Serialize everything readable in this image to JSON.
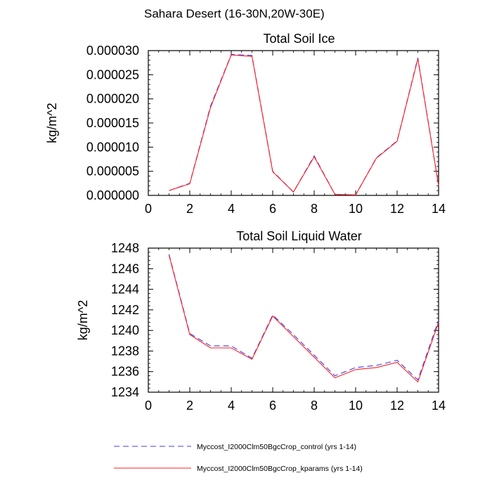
{
  "page": {
    "title": "Sahara Desert (16-30N,20W-30E)"
  },
  "colors": {
    "control": "#3b3bff",
    "kparams": "#ff2020",
    "axis": "#000000"
  },
  "legend": {
    "items": [
      {
        "label": "Myccost_I2000Clm50BgcCrop_control (yrs 1-14)",
        "series": "control",
        "dash": "dashed"
      },
      {
        "label": "Myccost_I2000Clm50BgcCrop_kparams (yrs 1-14)",
        "series": "kparams",
        "dash": "solid"
      }
    ]
  },
  "chart_data": [
    {
      "type": "line",
      "title": "Total Soil Ice",
      "xlabel": "",
      "ylabel": "kg/m^2",
      "xlim": [
        0,
        14
      ],
      "ylim": [
        0,
        3e-05
      ],
      "xticks": [
        0,
        2,
        4,
        6,
        8,
        10,
        12,
        14
      ],
      "yticks": [
        0,
        5e-06,
        1e-05,
        1.5e-05,
        2e-05,
        2.5e-05,
        3e-05
      ],
      "ytick_labels": [
        "0.000000",
        "0.000005",
        "0.000010",
        "0.000015",
        "0.000020",
        "0.000025",
        "0.000030"
      ],
      "x": [
        1,
        2,
        3,
        4,
        5,
        6,
        7,
        8,
        9,
        10,
        11,
        12,
        13,
        14
      ],
      "series": [
        {
          "name": "Myccost_I2000Clm50BgcCrop_control (yrs 1-14)",
          "key": "control",
          "values": [
            1e-06,
            2.5e-06,
            1.85e-05,
            2.92e-05,
            2.9e-05,
            5e-06,
            7e-07,
            8.2e-06,
            2e-07,
            1e-07,
            7.8e-06,
            1.13e-05,
            2.85e-05,
            2.1e-06
          ]
        },
        {
          "name": "Myccost_I2000Clm50BgcCrop_kparams (yrs 1-14)",
          "key": "kparams",
          "values": [
            1e-06,
            2.4e-06,
            1.82e-05,
            2.91e-05,
            2.88e-05,
            4.9e-06,
            7e-07,
            8e-06,
            2e-07,
            1e-07,
            7.7e-06,
            1.12e-05,
            2.83e-05,
            2e-06
          ]
        }
      ]
    },
    {
      "type": "line",
      "title": "Total Soil Liquid Water",
      "xlabel": "",
      "ylabel": "kg/m^2",
      "xlim": [
        0,
        14
      ],
      "ylim": [
        1234,
        1248
      ],
      "xticks": [
        0,
        2,
        4,
        6,
        8,
        10,
        12,
        14
      ],
      "yticks": [
        1234,
        1236,
        1238,
        1240,
        1242,
        1244,
        1246,
        1248
      ],
      "ytick_labels": [
        "1234",
        "1236",
        "1238",
        "1240",
        "1242",
        "1244",
        "1246",
        "1248"
      ],
      "x": [
        1,
        2,
        3,
        4,
        5,
        6,
        7,
        8,
        9,
        10,
        11,
        12,
        13,
        14
      ],
      "series": [
        {
          "name": "Myccost_I2000Clm50BgcCrop_control (yrs 1-14)",
          "key": "control",
          "values": [
            1247.4,
            1239.7,
            1238.5,
            1238.5,
            1237.3,
            1241.5,
            1239.6,
            1237.6,
            1235.6,
            1236.4,
            1236.6,
            1237.1,
            1235.2,
            1241.0
          ]
        },
        {
          "name": "Myccost_I2000Clm50BgcCrop_kparams (yrs 1-14)",
          "key": "kparams",
          "values": [
            1247.3,
            1239.6,
            1238.3,
            1238.3,
            1237.2,
            1241.4,
            1239.4,
            1237.4,
            1235.4,
            1236.2,
            1236.4,
            1236.9,
            1235.0,
            1240.8
          ]
        }
      ]
    }
  ]
}
